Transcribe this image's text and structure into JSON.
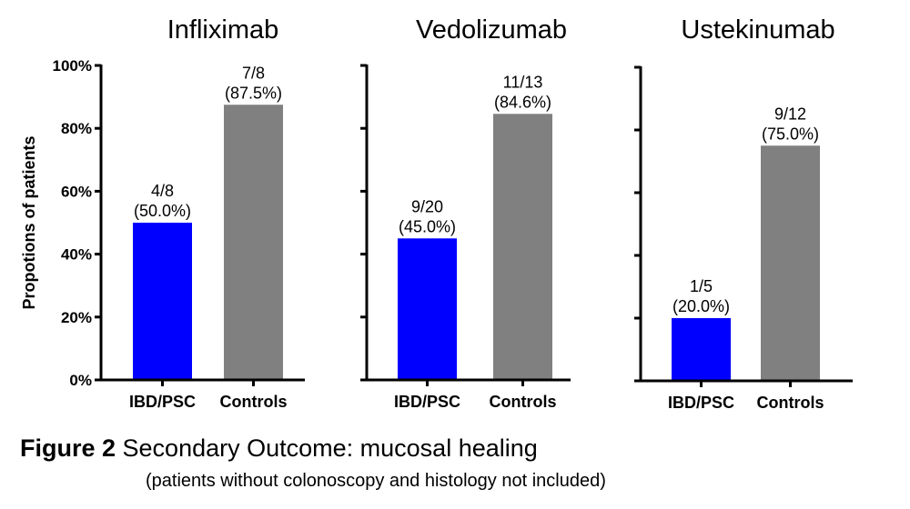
{
  "chart_data": {
    "type": "bar",
    "ylabel": "Propotions of patients",
    "ylim": [
      0,
      100
    ],
    "yticks": [
      "0%",
      "20%",
      "40%",
      "60%",
      "80%",
      "100%"
    ],
    "categories": [
      "IBD/PSC",
      "Controls"
    ],
    "colors": {
      "IBD/PSC": "#0000ff",
      "Controls": "#808080"
    },
    "grid": false,
    "panels": [
      {
        "title": "Infliximab",
        "values": [
          50.0,
          87.5
        ],
        "labels": [
          [
            "4/8",
            "(50.0%)"
          ],
          [
            "7/8",
            "(87.5%)"
          ]
        ]
      },
      {
        "title": "Vedolizumab",
        "values": [
          45.0,
          84.6
        ],
        "labels": [
          [
            "9/20",
            "(45.0%)"
          ],
          [
            "11/13",
            "(84.6%)"
          ]
        ]
      },
      {
        "title": "Ustekinumab",
        "values": [
          20.0,
          75.0
        ],
        "labels": [
          [
            "1/5",
            "(20.0%)"
          ],
          [
            "9/12",
            "(75.0%)"
          ]
        ]
      }
    ]
  },
  "caption": {
    "figure": "Figure 2",
    "text": " Secondary Outcome: mucosal healing",
    "note": "(patients without colonoscopy and histology not included)"
  }
}
